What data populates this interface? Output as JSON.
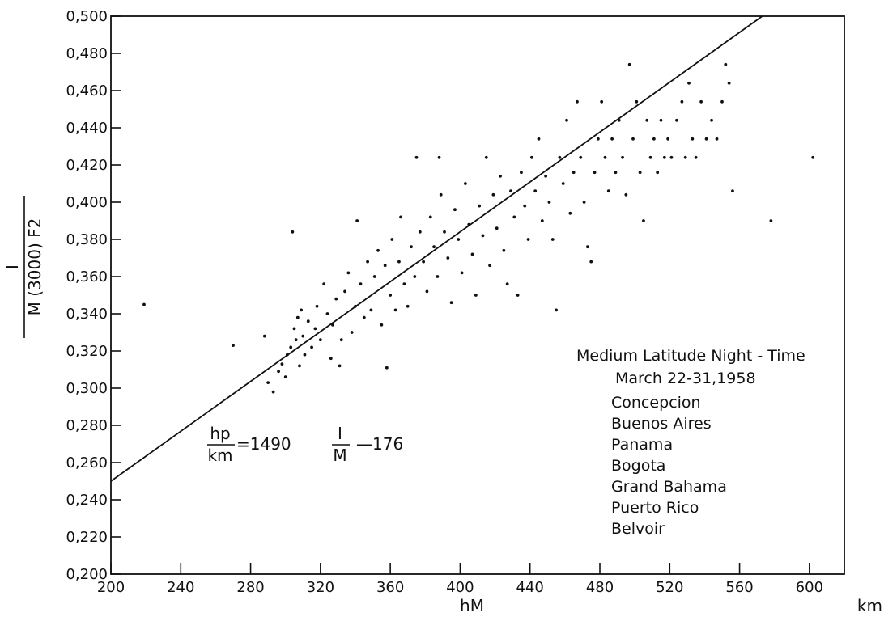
{
  "chart_data": {
    "type": "scatter",
    "xlabel": "hM",
    "x_unit": "km",
    "ylabel_numerator": "I",
    "ylabel_denominator": "M (3000) F2",
    "xlim": [
      200,
      620
    ],
    "ylim": [
      0.2,
      0.5
    ],
    "x_ticks": [
      200,
      240,
      280,
      320,
      360,
      400,
      440,
      480,
      520,
      560,
      600
    ],
    "x_tick_labels": [
      "200",
      "240",
      "280",
      "320",
      "360",
      "400",
      "440",
      "480",
      "520",
      "560",
      "600"
    ],
    "y_ticks": [
      0.2,
      0.22,
      0.24,
      0.26,
      0.28,
      0.3,
      0.32,
      0.34,
      0.36,
      0.38,
      0.4,
      0.42,
      0.44,
      0.46,
      0.48,
      0.5
    ],
    "y_tick_labels": [
      "0,200",
      "0,220",
      "0,240",
      "0,260",
      "0,280",
      "0,300",
      "0,320",
      "0,340",
      "0,360",
      "0,380",
      "0,400",
      "0,420",
      "0,440",
      "0,460",
      "0,480",
      "0,500"
    ],
    "grid": false,
    "regression_line": {
      "x": [
        200,
        573
      ],
      "y": [
        0.25,
        0.5
      ]
    },
    "formula": {
      "lhs_num": "hp",
      "lhs_den": "km",
      "coef": "=1490",
      "frac_num": "I",
      "frac_den": "M",
      "tail": "—176"
    },
    "annotation": {
      "title": "Medium Latitude Night - Time",
      "subtitle": "March 22-31,1958",
      "stations": [
        "Concepcion",
        "Buenos Aires",
        "Panama",
        "Bogota",
        "Grand Bahama",
        "Puerto Rico",
        "Belvoir"
      ]
    },
    "series": [
      {
        "points": [
          [
            219,
            0.345
          ],
          [
            270,
            0.323
          ],
          [
            288,
            0.328
          ],
          [
            290,
            0.303
          ],
          [
            293,
            0.298
          ],
          [
            296,
            0.309
          ],
          [
            298,
            0.313
          ],
          [
            300,
            0.306
          ],
          [
            301,
            0.318
          ],
          [
            303,
            0.322
          ],
          [
            304,
            0.384
          ],
          [
            305,
            0.332
          ],
          [
            306,
            0.326
          ],
          [
            307,
            0.338
          ],
          [
            308,
            0.312
          ],
          [
            309,
            0.342
          ],
          [
            310,
            0.328
          ],
          [
            311,
            0.318
          ],
          [
            313,
            0.336
          ],
          [
            315,
            0.322
          ],
          [
            317,
            0.332
          ],
          [
            318,
            0.344
          ],
          [
            320,
            0.326
          ],
          [
            322,
            0.356
          ],
          [
            324,
            0.34
          ],
          [
            326,
            0.316
          ],
          [
            327,
            0.334
          ],
          [
            329,
            0.348
          ],
          [
            331,
            0.312
          ],
          [
            332,
            0.326
          ],
          [
            334,
            0.352
          ],
          [
            336,
            0.362
          ],
          [
            338,
            0.33
          ],
          [
            340,
            0.344
          ],
          [
            341,
            0.39
          ],
          [
            343,
            0.356
          ],
          [
            345,
            0.338
          ],
          [
            347,
            0.368
          ],
          [
            349,
            0.342
          ],
          [
            351,
            0.36
          ],
          [
            353,
            0.374
          ],
          [
            355,
            0.334
          ],
          [
            357,
            0.366
          ],
          [
            358,
            0.311
          ],
          [
            360,
            0.35
          ],
          [
            361,
            0.38
          ],
          [
            363,
            0.342
          ],
          [
            365,
            0.368
          ],
          [
            366,
            0.392
          ],
          [
            368,
            0.356
          ],
          [
            370,
            0.344
          ],
          [
            372,
            0.376
          ],
          [
            374,
            0.36
          ],
          [
            375,
            0.424
          ],
          [
            377,
            0.384
          ],
          [
            379,
            0.368
          ],
          [
            381,
            0.352
          ],
          [
            383,
            0.392
          ],
          [
            385,
            0.376
          ],
          [
            387,
            0.36
          ],
          [
            388,
            0.424
          ],
          [
            389,
            0.404
          ],
          [
            391,
            0.384
          ],
          [
            393,
            0.37
          ],
          [
            395,
            0.346
          ],
          [
            397,
            0.396
          ],
          [
            399,
            0.38
          ],
          [
            401,
            0.362
          ],
          [
            403,
            0.41
          ],
          [
            405,
            0.388
          ],
          [
            407,
            0.372
          ],
          [
            409,
            0.35
          ],
          [
            411,
            0.398
          ],
          [
            413,
            0.382
          ],
          [
            415,
            0.424
          ],
          [
            417,
            0.366
          ],
          [
            419,
            0.404
          ],
          [
            421,
            0.386
          ],
          [
            423,
            0.414
          ],
          [
            425,
            0.374
          ],
          [
            427,
            0.356
          ],
          [
            429,
            0.406
          ],
          [
            431,
            0.392
          ],
          [
            433,
            0.35
          ],
          [
            435,
            0.416
          ],
          [
            437,
            0.398
          ],
          [
            439,
            0.38
          ],
          [
            441,
            0.424
          ],
          [
            443,
            0.406
          ],
          [
            445,
            0.434
          ],
          [
            447,
            0.39
          ],
          [
            449,
            0.414
          ],
          [
            451,
            0.4
          ],
          [
            453,
            0.38
          ],
          [
            455,
            0.342
          ],
          [
            457,
            0.424
          ],
          [
            459,
            0.41
          ],
          [
            461,
            0.444
          ],
          [
            463,
            0.394
          ],
          [
            465,
            0.416
          ],
          [
            467,
            0.454
          ],
          [
            469,
            0.424
          ],
          [
            471,
            0.4
          ],
          [
            473,
            0.376
          ],
          [
            475,
            0.368
          ],
          [
            477,
            0.416
          ],
          [
            479,
            0.434
          ],
          [
            481,
            0.454
          ],
          [
            483,
            0.424
          ],
          [
            485,
            0.406
          ],
          [
            487,
            0.434
          ],
          [
            489,
            0.416
          ],
          [
            491,
            0.444
          ],
          [
            493,
            0.424
          ],
          [
            495,
            0.404
          ],
          [
            497,
            0.474
          ],
          [
            499,
            0.434
          ],
          [
            501,
            0.454
          ],
          [
            503,
            0.416
          ],
          [
            505,
            0.39
          ],
          [
            507,
            0.444
          ],
          [
            509,
            0.424
          ],
          [
            511,
            0.434
          ],
          [
            513,
            0.416
          ],
          [
            515,
            0.444
          ],
          [
            517,
            0.424
          ],
          [
            519,
            0.434
          ],
          [
            521,
            0.424
          ],
          [
            524,
            0.444
          ],
          [
            527,
            0.454
          ],
          [
            529,
            0.424
          ],
          [
            531,
            0.464
          ],
          [
            533,
            0.434
          ],
          [
            535,
            0.424
          ],
          [
            538,
            0.454
          ],
          [
            541,
            0.434
          ],
          [
            544,
            0.444
          ],
          [
            547,
            0.434
          ],
          [
            550,
            0.454
          ],
          [
            552,
            0.474
          ],
          [
            554,
            0.464
          ],
          [
            556,
            0.406
          ],
          [
            578,
            0.39
          ],
          [
            602,
            0.424
          ]
        ]
      }
    ]
  }
}
